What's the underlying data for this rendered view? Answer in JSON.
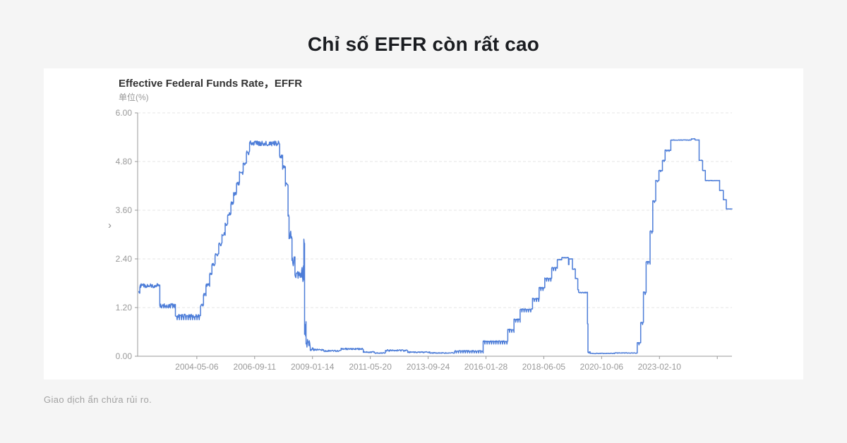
{
  "page": {
    "title": "Chỉ số EFFR còn rất cao",
    "background_color": "#f5f5f5",
    "disclaimer": "Giao dịch ẩn chứa rủi ro."
  },
  "chart": {
    "title": "Effective Federal Funds Rate，EFFR",
    "unit_label": "单位(%)",
    "chevron_icon": "›"
  },
  "chart_data": {
    "type": "line",
    "title": "Effective Federal Funds Rate，EFFR",
    "ylabel": "单位(%)",
    "xlabel": "",
    "series_name": "EFFR",
    "ylim": [
      0,
      6
    ],
    "xlim_years": [
      2001.95,
      2026.05
    ],
    "grid": "horizontal-dashed",
    "legend": "none",
    "line_color": "#4d7dd8",
    "grid_color": "#e4e4e4",
    "axis_color": "#999999",
    "tick_label_color": "#999999",
    "y_ticks": [
      {
        "v": 0.0,
        "label": "0.00"
      },
      {
        "v": 1.2,
        "label": "1.20"
      },
      {
        "v": 2.4,
        "label": "2.40"
      },
      {
        "v": 3.6,
        "label": "3.60"
      },
      {
        "v": 4.8,
        "label": "4.80"
      },
      {
        "v": 6.0,
        "label": "6.00"
      }
    ],
    "x_ticks": [
      {
        "t": 2004.35,
        "label": "2004-05-06"
      },
      {
        "t": 2006.695,
        "label": "2006-09-11"
      },
      {
        "t": 2009.04,
        "label": "2009-01-14"
      },
      {
        "t": 2011.385,
        "label": "2011-05-20"
      },
      {
        "t": 2013.73,
        "label": "2013-09-24"
      },
      {
        "t": 2016.075,
        "label": "2016-01-28"
      },
      {
        "t": 2018.42,
        "label": "2018-06-05"
      },
      {
        "t": 2020.765,
        "label": "2020-10-06"
      },
      {
        "t": 2023.11,
        "label": "2023-02-10"
      },
      {
        "t": 2025.455,
        "label": ""
      }
    ],
    "segments_note": "Each segment: [year_start, year_end, rate_percent, noise_amplitude, monthly_dip_teeth]",
    "segments": [
      [
        2002.0,
        2002.04,
        1.57,
        0.03,
        0
      ],
      [
        2002.04,
        2002.85,
        1.74,
        0.05,
        0
      ],
      [
        2002.85,
        2003.48,
        1.25,
        0.05,
        0.06
      ],
      [
        2003.48,
        2004.5,
        1.0,
        0.04,
        0.1
      ],
      [
        2004.5,
        2004.62,
        1.26,
        0.04,
        0
      ],
      [
        2004.62,
        2004.72,
        1.51,
        0.04,
        0
      ],
      [
        2004.72,
        2004.87,
        1.76,
        0.04,
        0
      ],
      [
        2004.87,
        2004.96,
        2.01,
        0.04,
        0
      ],
      [
        2004.96,
        2005.09,
        2.26,
        0.04,
        0
      ],
      [
        2005.09,
        2005.24,
        2.51,
        0.04,
        0
      ],
      [
        2005.24,
        2005.37,
        2.76,
        0.04,
        0
      ],
      [
        2005.37,
        2005.5,
        3.01,
        0.04,
        0
      ],
      [
        2005.5,
        2005.6,
        3.26,
        0.04,
        0
      ],
      [
        2005.6,
        2005.73,
        3.51,
        0.05,
        0
      ],
      [
        2005.73,
        2005.84,
        3.76,
        0.05,
        0
      ],
      [
        2005.84,
        2005.96,
        4.01,
        0.05,
        0
      ],
      [
        2005.96,
        2006.08,
        4.26,
        0.05,
        0
      ],
      [
        2006.08,
        2006.23,
        4.51,
        0.05,
        0
      ],
      [
        2006.23,
        2006.36,
        4.76,
        0.05,
        0
      ],
      [
        2006.36,
        2006.49,
        5.01,
        0.05,
        0
      ],
      [
        2006.49,
        2007.71,
        5.25,
        0.06,
        0
      ],
      [
        2007.71,
        2007.83,
        4.94,
        0.05,
        0
      ],
      [
        2007.83,
        2007.94,
        4.65,
        0.05,
        0
      ],
      [
        2007.94,
        2008.05,
        4.24,
        0.07,
        0
      ],
      [
        2008.05,
        2008.09,
        3.45,
        0.06,
        0
      ],
      [
        2008.09,
        2008.21,
        3.0,
        0.12,
        0
      ],
      [
        2008.21,
        2008.33,
        2.35,
        0.14,
        0
      ],
      [
        2008.33,
        2008.6,
        2.0,
        0.1,
        0
      ],
      [
        2008.6,
        2008.69,
        2.05,
        0.22,
        0
      ],
      [
        2008.69,
        2008.72,
        2.88,
        0.1,
        0
      ],
      [
        2008.72,
        2008.78,
        0.6,
        0.28,
        0
      ],
      [
        2008.78,
        2008.95,
        0.3,
        0.13,
        0
      ],
      [
        2008.95,
        2009.1,
        0.18,
        0.05,
        0
      ],
      [
        2009.1,
        2009.5,
        0.16,
        0.02,
        0
      ],
      [
        2009.5,
        2010.2,
        0.13,
        0.02,
        0
      ],
      [
        2010.2,
        2011.1,
        0.18,
        0.02,
        0
      ],
      [
        2011.1,
        2011.55,
        0.1,
        0.015,
        0
      ],
      [
        2011.55,
        2012.0,
        0.08,
        0.015,
        0
      ],
      [
        2012.0,
        2012.9,
        0.14,
        0.02,
        0
      ],
      [
        2012.9,
        2013.8,
        0.1,
        0.015,
        0
      ],
      [
        2013.8,
        2014.8,
        0.08,
        0.012,
        0
      ],
      [
        2014.8,
        2015.96,
        0.13,
        0.012,
        0.05
      ],
      [
        2015.96,
        2016.96,
        0.37,
        0.012,
        0.07
      ],
      [
        2016.96,
        2017.21,
        0.66,
        0.012,
        0.07
      ],
      [
        2017.21,
        2017.46,
        0.91,
        0.012,
        0.07
      ],
      [
        2017.46,
        2017.96,
        1.16,
        0.012,
        0.07
      ],
      [
        2017.96,
        2018.23,
        1.42,
        0.012,
        0.07
      ],
      [
        2018.23,
        2018.46,
        1.69,
        0.012,
        0.07
      ],
      [
        2018.46,
        2018.74,
        1.92,
        0.012,
        0.07
      ],
      [
        2018.74,
        2018.97,
        2.18,
        0.012,
        0.07
      ],
      [
        2018.97,
        2019.15,
        2.38,
        0.008,
        0
      ],
      [
        2019.15,
        2019.42,
        2.43,
        0.01,
        0
      ],
      [
        2019.42,
        2019.44,
        2.26,
        0,
        0
      ],
      [
        2019.44,
        2019.58,
        2.4,
        0.008,
        0
      ],
      [
        2019.58,
        2019.7,
        2.15,
        0.01,
        0
      ],
      [
        2019.7,
        2019.8,
        1.92,
        0.012,
        0
      ],
      [
        2019.8,
        2019.83,
        1.64,
        0,
        0
      ],
      [
        2019.83,
        2020.19,
        1.57,
        0.012,
        0
      ],
      [
        2020.19,
        2020.21,
        0.8,
        0,
        0
      ],
      [
        2020.21,
        2020.3,
        0.1,
        0.02,
        0
      ],
      [
        2020.3,
        2021.3,
        0.07,
        0.008,
        0
      ],
      [
        2021.3,
        2022.21,
        0.08,
        0.008,
        0
      ],
      [
        2022.21,
        2022.35,
        0.33,
        0.008,
        0.05
      ],
      [
        2022.35,
        2022.46,
        0.83,
        0.008,
        0.05
      ],
      [
        2022.46,
        2022.57,
        1.58,
        0.01,
        0.06
      ],
      [
        2022.57,
        2022.73,
        2.33,
        0.01,
        0.06
      ],
      [
        2022.73,
        2022.84,
        3.08,
        0.01,
        0.05
      ],
      [
        2022.84,
        2022.96,
        3.83,
        0.01,
        0.04
      ],
      [
        2022.96,
        2023.09,
        4.33,
        0.008,
        0.03
      ],
      [
        2023.09,
        2023.23,
        4.58,
        0.008,
        0.03
      ],
      [
        2023.23,
        2023.34,
        4.83,
        0.008,
        0.03
      ],
      [
        2023.34,
        2023.57,
        5.08,
        0.008,
        0.03
      ],
      [
        2023.57,
        2024.4,
        5.33,
        0.006,
        0
      ],
      [
        2024.4,
        2024.55,
        5.36,
        0.005,
        0
      ],
      [
        2024.55,
        2024.72,
        5.33,
        0.006,
        0
      ],
      [
        2024.72,
        2024.86,
        4.83,
        0.006,
        0
      ],
      [
        2024.86,
        2024.97,
        4.58,
        0.006,
        0
      ],
      [
        2024.97,
        2025.55,
        4.33,
        0.005,
        0
      ],
      [
        2025.55,
        2025.7,
        4.09,
        0.005,
        0
      ],
      [
        2025.7,
        2025.82,
        3.86,
        0.005,
        0
      ],
      [
        2025.82,
        2026.05,
        3.63,
        0.004,
        0
      ]
    ]
  }
}
